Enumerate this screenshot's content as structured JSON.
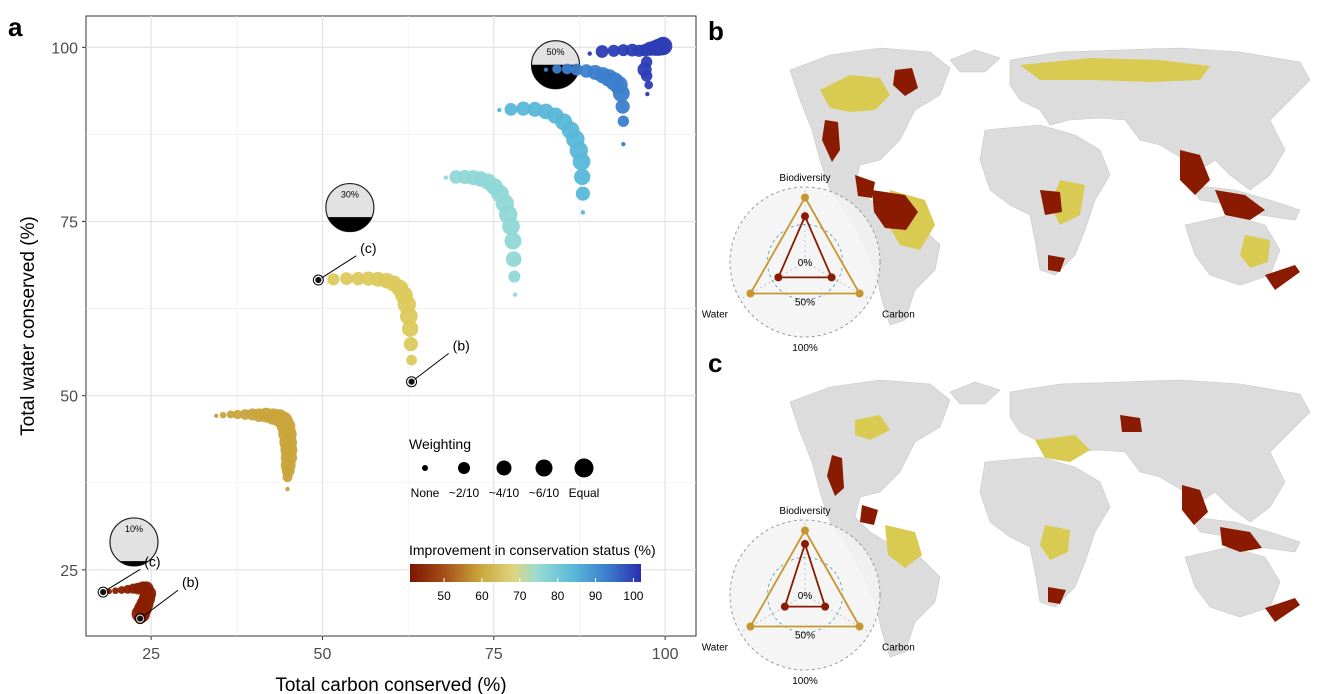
{
  "panels": {
    "a": "a",
    "b": "b",
    "c": "c"
  },
  "chart_data": {
    "type": "scatter",
    "xlabel": "Total carbon conserved (%)",
    "ylabel": "Total water conserved (%)",
    "xlim": [
      15.5,
      104.5
    ],
    "ylim": [
      15.5,
      104.5
    ],
    "xticks": [
      25,
      50,
      75,
      100
    ],
    "yticks": [
      25,
      50,
      75,
      100
    ],
    "grid": true,
    "colors": {
      "c40": "#8a1f00",
      "c50": "#c9a43c",
      "c60": "#dcc95c",
      "c70": "#8fd8d6",
      "c80": "#59b7d8",
      "c90": "#3c7fcc",
      "c100": "#2c3db5"
    },
    "series": [
      {
        "improvement": 40,
        "points": [
          [
            18.0,
            21.8
          ],
          [
            18.9,
            21.9
          ],
          [
            19.8,
            22.0
          ],
          [
            20.7,
            22.1
          ],
          [
            21.6,
            22.2
          ],
          [
            22.4,
            22.3
          ],
          [
            23.1,
            22.3
          ],
          [
            23.8,
            22.4
          ],
          [
            24.3,
            22.3
          ],
          [
            24.6,
            21.6
          ],
          [
            24.4,
            20.9
          ],
          [
            24.1,
            20.1
          ],
          [
            23.8,
            19.4
          ],
          [
            23.5,
            18.7
          ],
          [
            23.4,
            18.0
          ]
        ],
        "sizes": [
          0.0,
          0.08,
          0.16,
          0.24,
          0.32,
          0.42,
          0.52,
          0.62,
          0.72,
          0.8,
          0.85,
          0.9,
          0.95,
          1.0,
          0.0
        ]
      },
      {
        "improvement": 50,
        "points": [
          [
            34.5,
            47.1
          ],
          [
            35.5,
            47.2
          ],
          [
            36.6,
            47.3
          ],
          [
            37.6,
            47.3
          ],
          [
            38.7,
            47.3
          ],
          [
            39.8,
            47.3
          ],
          [
            40.8,
            47.2
          ],
          [
            41.8,
            47.2
          ],
          [
            42.8,
            47.0
          ],
          [
            43.7,
            46.8
          ],
          [
            44.3,
            46.4
          ],
          [
            44.7,
            45.6
          ],
          [
            44.9,
            44.5
          ],
          [
            45.0,
            43.3
          ],
          [
            45.1,
            42.2
          ],
          [
            45.1,
            41.1
          ],
          [
            45.0,
            40.0
          ],
          [
            45.0,
            39.2
          ],
          [
            44.9,
            38.3
          ],
          [
            44.9,
            36.6
          ]
        ],
        "sizes": [
          0.0,
          0.15,
          0.25,
          0.35,
          0.45,
          0.55,
          0.65,
          0.75,
          0.85,
          0.95,
          1.0,
          1.0,
          1.0,
          0.95,
          0.9,
          0.85,
          0.75,
          0.6,
          0.4,
          0.0
        ]
      },
      {
        "improvement": 60,
        "points": [
          [
            49.4,
            66.6
          ],
          [
            51.6,
            66.7
          ],
          [
            53.5,
            66.8
          ],
          [
            55.2,
            66.8
          ],
          [
            56.7,
            66.8
          ],
          [
            58.1,
            66.7
          ],
          [
            59.4,
            66.5
          ],
          [
            60.4,
            66.1
          ],
          [
            61.3,
            65.4
          ],
          [
            61.9,
            64.4
          ],
          [
            62.3,
            63.1
          ],
          [
            62.6,
            61.4
          ],
          [
            62.8,
            59.6
          ],
          [
            62.9,
            57.4
          ],
          [
            63.0,
            55.1
          ],
          [
            63.0,
            52.0
          ]
        ],
        "sizes": [
          0.0,
          0.55,
          0.6,
          0.65,
          0.7,
          0.75,
          0.8,
          0.85,
          0.9,
          0.95,
          1.0,
          0.95,
          0.85,
          0.7,
          0.45,
          0.0
        ]
      },
      {
        "improvement": 70,
        "points": [
          [
            68.0,
            81.3
          ],
          [
            69.5,
            81.4
          ],
          [
            70.8,
            81.4
          ],
          [
            72.0,
            81.3
          ],
          [
            73.1,
            81.1
          ],
          [
            74.2,
            80.7
          ],
          [
            75.1,
            80.0
          ],
          [
            75.9,
            79.0
          ],
          [
            76.6,
            77.6
          ],
          [
            77.1,
            76.0
          ],
          [
            77.5,
            74.3
          ],
          [
            77.8,
            72.2
          ],
          [
            77.9,
            69.6
          ],
          [
            78.0,
            67.1
          ],
          [
            78.1,
            64.5
          ]
        ],
        "sizes": [
          0.0,
          0.65,
          0.7,
          0.75,
          0.8,
          0.85,
          0.9,
          0.95,
          1.0,
          1.0,
          0.95,
          0.9,
          0.8,
          0.55,
          0.0
        ]
      },
      {
        "improvement": 80,
        "points": [
          [
            75.8,
            91.0
          ],
          [
            77.5,
            91.1
          ],
          [
            79.3,
            91.2
          ],
          [
            81.0,
            91.1
          ],
          [
            82.6,
            90.8
          ],
          [
            84.0,
            90.2
          ],
          [
            85.2,
            89.3
          ],
          [
            86.2,
            88.1
          ],
          [
            86.9,
            86.8
          ],
          [
            87.4,
            85.2
          ],
          [
            87.8,
            83.6
          ],
          [
            87.9,
            81.4
          ],
          [
            88.0,
            79.0
          ],
          [
            88.0,
            76.3
          ]
        ],
        "sizes": [
          0.0,
          0.6,
          0.7,
          0.75,
          0.8,
          0.85,
          0.9,
          0.95,
          1.0,
          1.0,
          0.95,
          0.85,
          0.7,
          0.0
        ]
      },
      {
        "improvement": 90,
        "points": [
          [
            82.6,
            96.8
          ],
          [
            84.2,
            96.9
          ],
          [
            85.7,
            96.9
          ],
          [
            87.1,
            96.8
          ],
          [
            88.5,
            96.6
          ],
          [
            89.8,
            96.4
          ],
          [
            90.9,
            96.0
          ],
          [
            91.8,
            95.6
          ],
          [
            92.6,
            95.1
          ],
          [
            93.2,
            94.6
          ],
          [
            93.6,
            93.4
          ],
          [
            93.8,
            91.5
          ],
          [
            93.9,
            89.4
          ],
          [
            93.9,
            86.1
          ]
        ],
        "sizes": [
          0.0,
          0.35,
          0.45,
          0.55,
          0.65,
          0.75,
          0.85,
          0.95,
          1.0,
          1.0,
          0.9,
          0.7,
          0.5,
          0.0
        ]
      },
      {
        "improvement": 100,
        "points": [
          [
            89.0,
            99.1
          ],
          [
            90.8,
            99.4
          ],
          [
            92.5,
            99.5
          ],
          [
            93.9,
            99.6
          ],
          [
            95.2,
            99.6
          ],
          [
            96.2,
            99.5
          ],
          [
            97.1,
            99.6
          ],
          [
            97.8,
            99.8
          ],
          [
            98.5,
            99.9
          ],
          [
            99.0,
            100.0
          ],
          [
            99.4,
            100.1
          ],
          [
            99.7,
            100.2
          ],
          [
            97.3,
            97.9
          ],
          [
            97.0,
            96.8
          ],
          [
            97.3,
            95.9
          ],
          [
            97.6,
            94.6
          ],
          [
            97.4,
            93.3
          ]
        ],
        "sizes": [
          0.0,
          0.6,
          0.55,
          0.55,
          0.6,
          0.55,
          0.6,
          0.7,
          0.8,
          0.9,
          0.95,
          1.0,
          0.5,
          0.7,
          0.5,
          0.3,
          0.0
        ]
      }
    ],
    "highlighted": [
      {
        "label": "(c)",
        "point": [
          49.4,
          66.6
        ],
        "label_at": [
          55.5,
          70.5
        ]
      },
      {
        "label": "(b)",
        "point": [
          63.0,
          52.0
        ],
        "label_at": [
          69.0,
          56.5
        ]
      },
      {
        "label": "(c)",
        "point": [
          18.0,
          21.8
        ],
        "label_at": [
          24.0,
          25.5
        ]
      },
      {
        "label": "(b)",
        "point": [
          23.4,
          18.0
        ],
        "label_at": [
          29.5,
          22.5
        ]
      }
    ],
    "pies": [
      {
        "label": "50%",
        "fill_fraction": 0.5,
        "at": [
          84.0,
          97.5
        ]
      },
      {
        "label": "30%",
        "fill_fraction": 0.3,
        "at": [
          54.0,
          77.0
        ]
      },
      {
        "label": "10%",
        "fill_fraction": 0.1,
        "at": [
          22.5,
          29.0
        ]
      }
    ],
    "size_legend": {
      "title": "Weighting",
      "labels": [
        "None",
        "~2/10",
        "~4/10",
        "~6/10",
        "Equal"
      ]
    },
    "color_legend": {
      "title": "Improvement in conservation status (%)",
      "ticks": [
        50,
        60,
        70,
        80,
        90,
        100
      ],
      "range": [
        41,
        102
      ]
    }
  },
  "radar_b": {
    "axes": [
      "Biodiversity",
      "Water",
      "Carbon"
    ],
    "ring_labels": [
      "0%",
      "50%",
      "100%"
    ],
    "gold": [
      0.86,
      0.84,
      0.84
    ],
    "red": [
      0.61,
      0.41,
      0.41
    ]
  },
  "radar_c": {
    "axes": [
      "Biodiversity",
      "Water",
      "Carbon"
    ],
    "ring_labels": [
      "0%",
      "50%",
      "100%"
    ],
    "gold": [
      0.86,
      0.84,
      0.84
    ],
    "red": [
      0.68,
      0.31,
      0.31
    ]
  }
}
